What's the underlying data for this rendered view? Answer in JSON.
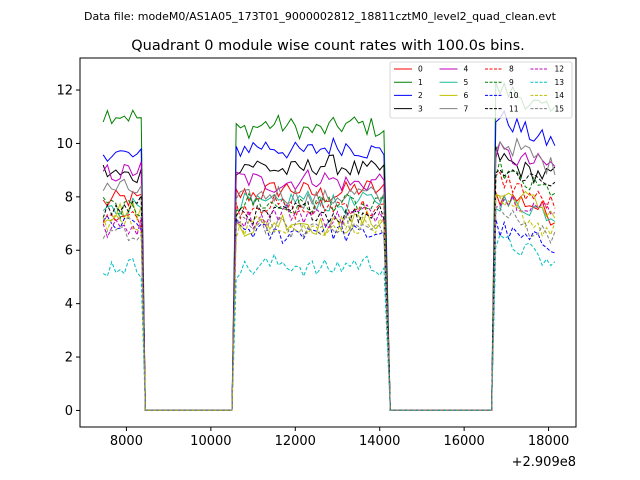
{
  "suptitle": "Data file: modeM0/AS1A05_173T01_9000002812_18811cztM0_level2_quad_clean.evt",
  "chart_data": {
    "type": "line",
    "title": "Quadrant 0 module wise count rates with 100.0s bins.",
    "xlabel": "",
    "ylabel": "",
    "x_offset_label": "+2.909e8",
    "xlim": [
      6900,
      18650
    ],
    "ylim": [
      -0.62,
      13.2
    ],
    "xticks": [
      8000,
      10000,
      12000,
      14000,
      16000,
      18000
    ],
    "xtick_labels": [
      "8000",
      "10000",
      "12000",
      "14000",
      "16000",
      "18000"
    ],
    "yticks": [
      0,
      2,
      4,
      6,
      8,
      10,
      12
    ],
    "ytick_labels": [
      "0",
      "2",
      "4",
      "6",
      "8",
      "10",
      "12"
    ],
    "grid": false,
    "legend_position": "top-right",
    "segments": [
      {
        "start": 7450,
        "end": 8350,
        "drop_end": 8450
      },
      {
        "start": 10600,
        "end": 14150,
        "drop_start": 10500,
        "drop_end": 14250
      },
      {
        "start": 16750,
        "end": 18150,
        "drop_start": 16650
      }
    ],
    "zero_segments": [
      [
        8450,
        10500
      ],
      [
        14250,
        16650
      ]
    ],
    "series": [
      {
        "name": "0",
        "color": "#ff0000",
        "dash": "solid",
        "levels": [
          7.8,
          8.2,
          8.1
        ]
      },
      {
        "name": "1",
        "color": "#008000",
        "dash": "solid",
        "levels": [
          11.0,
          10.6,
          12.0
        ]
      },
      {
        "name": "2",
        "color": "#0000ff",
        "dash": "solid",
        "levels": [
          9.6,
          9.8,
          10.9
        ]
      },
      {
        "name": "3",
        "color": "#000000",
        "dash": "solid",
        "levels": [
          8.9,
          9.1,
          9.5
        ]
      },
      {
        "name": "4",
        "color": "#bf00bf",
        "dash": "solid",
        "levels": [
          9.0,
          8.6,
          9.8
        ]
      },
      {
        "name": "5",
        "color": "#1abc9c",
        "dash": "solid",
        "levels": [
          7.6,
          7.8,
          8.0
        ]
      },
      {
        "name": "6",
        "color": "#bfbf00",
        "dash": "solid",
        "levels": [
          7.4,
          7.0,
          8.2
        ]
      },
      {
        "name": "7",
        "color": "#808080",
        "dash": "solid",
        "levels": [
          8.2,
          8.0,
          10.0
        ]
      },
      {
        "name": "8",
        "color": "#ff0000",
        "dash": "dashed",
        "levels": [
          7.3,
          7.6,
          8.6
        ]
      },
      {
        "name": "9",
        "color": "#008000",
        "dash": "dashed",
        "levels": [
          7.6,
          7.7,
          9.0
        ]
      },
      {
        "name": "10",
        "color": "#0000ff",
        "dash": "dashed",
        "levels": [
          7.0,
          6.7,
          6.9
        ]
      },
      {
        "name": "11",
        "color": "#000000",
        "dash": "dashed",
        "levels": [
          7.6,
          7.4,
          9.2
        ]
      },
      {
        "name": "12",
        "color": "#bf00bf",
        "dash": "dashed",
        "levels": [
          6.8,
          7.3,
          8.1
        ]
      },
      {
        "name": "13",
        "color": "#00bfbf",
        "dash": "dashed",
        "levels": [
          5.3,
          5.4,
          6.3
        ]
      },
      {
        "name": "14",
        "color": "#bfbf00",
        "dash": "dashed",
        "levels": [
          7.0,
          6.9,
          7.6
        ]
      },
      {
        "name": "15",
        "color": "#808080",
        "dash": "dashed",
        "levels": [
          6.6,
          6.9,
          7.4
        ]
      }
    ]
  }
}
